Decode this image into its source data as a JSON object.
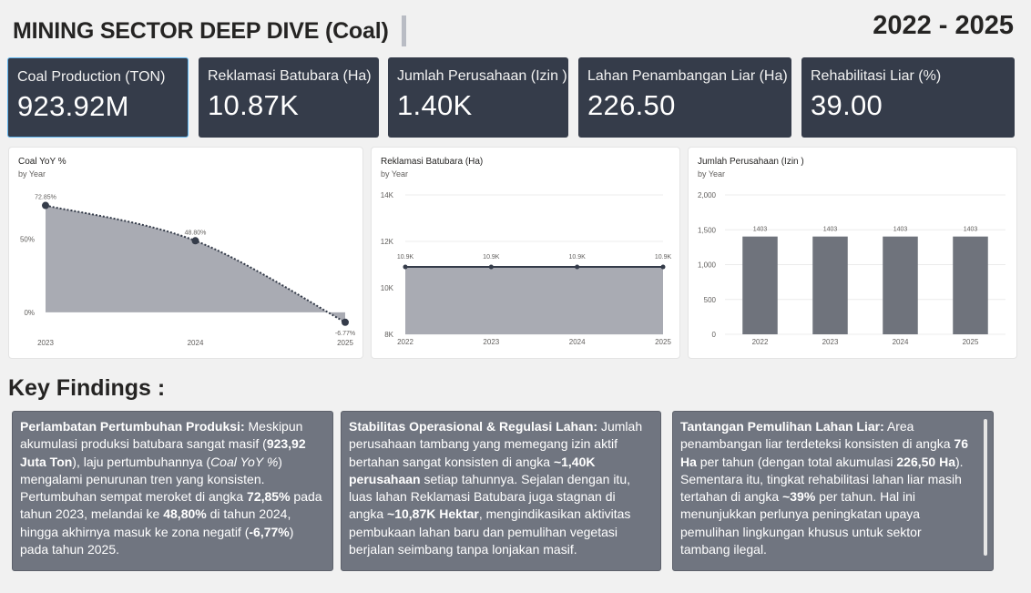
{
  "header": {
    "title": "MINING SECTOR DEEP DIVE (Coal)",
    "period": "2022 - 2025"
  },
  "kpis": [
    {
      "label": "Coal Production (TON)",
      "value": "923.92M"
    },
    {
      "label": "Reklamasi Batubara (Ha)",
      "value": "10.87K"
    },
    {
      "label": "Jumlah Perusahaan (Izin )",
      "value": "1.40K"
    },
    {
      "label": "Lahan Penambangan Liar (Ha)",
      "value": "226.50"
    },
    {
      "label": "Rehabilitasi Liar (%)",
      "value": "39.00"
    }
  ],
  "chart_data": [
    {
      "type": "area",
      "title": "Coal YoY %",
      "subtitle": "by Year",
      "x": [
        "2023",
        "2024",
        "2025"
      ],
      "values": [
        72.85,
        48.8,
        -6.77
      ],
      "data_labels": [
        "72.85%",
        "48.80%",
        "-6.77%"
      ],
      "y_ticks": [
        0,
        50
      ],
      "y_tick_labels": [
        "0%",
        "50%"
      ],
      "ylim": [
        -10,
        80
      ],
      "grid": false,
      "colors": {
        "area": "#a9abb3",
        "line": "#353c4a"
      }
    },
    {
      "type": "area",
      "title": "Reklamasi Batubara (Ha)",
      "subtitle": "by Year",
      "x": [
        "2022",
        "2023",
        "2024",
        "2025"
      ],
      "values": [
        10900,
        10900,
        10900,
        10900
      ],
      "data_labels": [
        "10.9K",
        "10.9K",
        "10.9K",
        "10.9K"
      ],
      "y_ticks": [
        8000,
        10000,
        12000,
        14000
      ],
      "y_tick_labels": [
        "8K",
        "10K",
        "12K",
        "14K"
      ],
      "ylim": [
        8000,
        14000
      ],
      "grid": true,
      "colors": {
        "area": "#a9abb3",
        "line": "#353c4a"
      }
    },
    {
      "type": "bar",
      "title": "Jumlah Perusahaan (Izin )",
      "subtitle": "by Year",
      "categories": [
        "2022",
        "2023",
        "2024",
        "2025"
      ],
      "values": [
        1403,
        1403,
        1403,
        1403
      ],
      "data_labels": [
        "1403",
        "1403",
        "1403",
        "1403"
      ],
      "y_ticks": [
        0,
        500,
        1000,
        1500,
        2000
      ],
      "y_tick_labels": [
        "0",
        "500",
        "1,000",
        "1,500",
        "2,000"
      ],
      "ylim": [
        0,
        2000
      ],
      "grid": true,
      "colors": {
        "bar": "#6f737c"
      }
    }
  ],
  "findings": {
    "title": "Key Findings :",
    "items": [
      {
        "segments": [
          {
            "t": "Perlambatan Pertumbuhan Produksi:",
            "s": "b"
          },
          {
            "t": " Meskipun akumulasi produksi batubara sangat masif (",
            "s": ""
          },
          {
            "t": "923,92 Juta Ton",
            "s": "b"
          },
          {
            "t": "), laju pertumbuhannya (",
            "s": ""
          },
          {
            "t": "Coal YoY %",
            "s": "i"
          },
          {
            "t": ") mengalami penurunan tren yang konsisten. Pertumbuhan sempat meroket di angka ",
            "s": ""
          },
          {
            "t": "72,85%",
            "s": "b"
          },
          {
            "t": " pada tahun 2023, melandai ke ",
            "s": ""
          },
          {
            "t": "48,80%",
            "s": "b"
          },
          {
            "t": " di tahun 2024, hingga akhirnya masuk ke zona negatif (",
            "s": ""
          },
          {
            "t": "-6,77%",
            "s": "b"
          },
          {
            "t": ") pada tahun 2025.",
            "s": ""
          }
        ]
      },
      {
        "segments": [
          {
            "t": "Stabilitas Operasional & Regulasi Lahan:",
            "s": "b"
          },
          {
            "t": " Jumlah perusahaan tambang yang memegang izin aktif bertahan sangat konsisten di angka ",
            "s": ""
          },
          {
            "t": "~1,40K perusahaan",
            "s": "b"
          },
          {
            "t": " setiap tahunnya. Sejalan dengan itu, luas lahan Reklamasi Batubara juga stagnan di angka ",
            "s": ""
          },
          {
            "t": "~10,87K Hektar",
            "s": "b"
          },
          {
            "t": ", mengindikasikan aktivitas pembukaan lahan baru dan pemulihan vegetasi berjalan seimbang tanpa lonjakan masif.",
            "s": ""
          }
        ]
      },
      {
        "segments": [
          {
            "t": "Tantangan Pemulihan Lahan Liar:",
            "s": "b"
          },
          {
            "t": " Area penambangan liar terdeteksi konsisten di angka ",
            "s": ""
          },
          {
            "t": "76 Ha",
            "s": "b"
          },
          {
            "t": " per tahun (dengan total akumulasi ",
            "s": ""
          },
          {
            "t": "226,50 Ha",
            "s": "b"
          },
          {
            "t": "). Sementara itu, tingkat rehabilitasi lahan liar masih tertahan di angka ",
            "s": ""
          },
          {
            "t": "~39%",
            "s": "b"
          },
          {
            "t": " per tahun. Hal ini menunjukkan perlunya peningkatan upaya pemulihan lingkungan khusus untuk sektor tambang ilegal.",
            "s": ""
          }
        ]
      }
    ]
  }
}
